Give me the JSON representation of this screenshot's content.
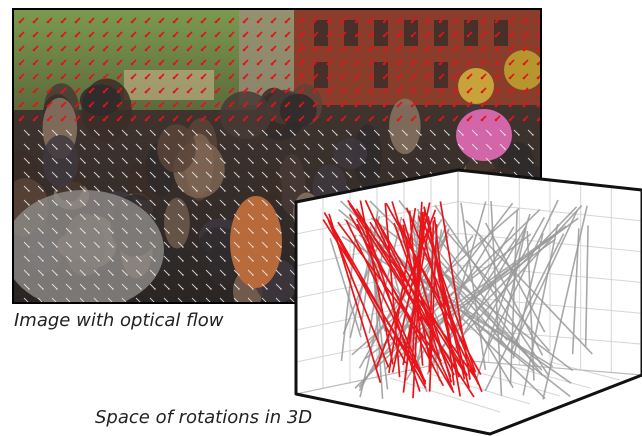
{
  "captions": {
    "left": "Image with optical flow",
    "bottom": "Space of rotations in 3D"
  },
  "colors": {
    "flow_arrow_top": "#e0141a",
    "flow_arrow_bottom": "#f2f2f2",
    "rotation_highlight": "#e8141a",
    "rotation_other": "#9a9a9a",
    "cube_frame": "#111111",
    "grid": "#d6d6d6"
  }
}
